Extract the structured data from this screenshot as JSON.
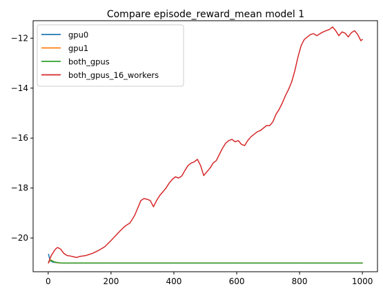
{
  "chart_data": {
    "type": "line",
    "title": "Compare episode_reward_mean model 1",
    "xlabel": "",
    "ylabel": "",
    "xlim": [
      -48,
      1048
    ],
    "ylim": [
      -21.35,
      -11.3
    ],
    "x_ticks": [
      0,
      200,
      400,
      600,
      800,
      1000
    ],
    "x_tick_labels": [
      "0",
      "200",
      "400",
      "600",
      "800",
      "1000"
    ],
    "y_ticks": [
      -20,
      -18,
      -16,
      -14,
      -12
    ],
    "y_tick_labels": [
      "−20",
      "−18",
      "−16",
      "−14",
      "−12"
    ],
    "grid": false,
    "legend_position": "upper-left",
    "series": [
      {
        "name": "gpu0",
        "color": "#1f77b4",
        "x": [
          1,
          3,
          5,
          7,
          9,
          12,
          16,
          22,
          30,
          40,
          60,
          100,
          200,
          400,
          600,
          800,
          1000
        ],
        "y": [
          -20.65,
          -20.75,
          -20.85,
          -20.9,
          -20.92,
          -20.95,
          -20.97,
          -20.98,
          -20.99,
          -21.0,
          -21.0,
          -21.0,
          -21.0,
          -21.0,
          -21.0,
          -21.0,
          -21.0
        ]
      },
      {
        "name": "gpu1",
        "color": "#ff7f0e",
        "x": [
          1,
          4,
          8,
          12,
          18,
          25,
          35,
          60,
          100,
          200,
          400,
          600,
          800,
          1000
        ],
        "y": [
          -21.0,
          -20.9,
          -20.88,
          -20.9,
          -20.95,
          -20.98,
          -21.0,
          -21.0,
          -21.0,
          -21.0,
          -21.0,
          -21.0,
          -21.0,
          -21.0
        ]
      },
      {
        "name": "both_gpus",
        "color": "#2ca02c",
        "x": [
          1,
          5,
          10,
          15,
          20,
          30,
          40,
          60,
          100,
          200,
          300,
          400,
          500,
          600,
          700,
          800,
          900,
          1000
        ],
        "y": [
          -20.95,
          -20.92,
          -20.9,
          -20.93,
          -20.96,
          -20.98,
          -21.0,
          -21.0,
          -21.0,
          -21.0,
          -21.0,
          -21.0,
          -21.0,
          -21.0,
          -21.0,
          -21.0,
          -21.0,
          -21.0
        ]
      },
      {
        "name": "both_gpus_16_workers",
        "color": "#d62728",
        "x": [
          1,
          5,
          10,
          15,
          20,
          25,
          30,
          40,
          50,
          60,
          70,
          80,
          90,
          100,
          120,
          140,
          160,
          180,
          200,
          215,
          230,
          245,
          260,
          275,
          285,
          295,
          305,
          315,
          325,
          335,
          345,
          355,
          365,
          375,
          385,
          395,
          405,
          415,
          425,
          435,
          445,
          455,
          465,
          475,
          485,
          495,
          505,
          515,
          525,
          535,
          545,
          555,
          565,
          575,
          585,
          595,
          605,
          615,
          625,
          635,
          645,
          655,
          665,
          675,
          685,
          695,
          705,
          715,
          725,
          735,
          745,
          755,
          765,
          775,
          785,
          795,
          805,
          815,
          825,
          835,
          845,
          855,
          865,
          875,
          885,
          895,
          905,
          915,
          925,
          935,
          945,
          955,
          965,
          975,
          985,
          995,
          1000
        ],
        "y": [
          -21.0,
          -20.85,
          -20.7,
          -20.6,
          -20.5,
          -20.42,
          -20.38,
          -20.45,
          -20.62,
          -20.7,
          -20.72,
          -20.75,
          -20.78,
          -20.74,
          -20.7,
          -20.62,
          -20.5,
          -20.35,
          -20.1,
          -19.9,
          -19.7,
          -19.52,
          -19.4,
          -19.1,
          -18.8,
          -18.5,
          -18.42,
          -18.45,
          -18.5,
          -18.75,
          -18.5,
          -18.3,
          -18.15,
          -18.0,
          -17.8,
          -17.65,
          -17.55,
          -17.6,
          -17.52,
          -17.3,
          -17.1,
          -17.0,
          -16.95,
          -16.85,
          -17.1,
          -17.5,
          -17.35,
          -17.2,
          -17.0,
          -16.9,
          -16.65,
          -16.4,
          -16.2,
          -16.1,
          -16.05,
          -16.15,
          -16.1,
          -16.25,
          -16.3,
          -16.1,
          -15.95,
          -15.85,
          -15.75,
          -15.7,
          -15.6,
          -15.5,
          -15.5,
          -15.35,
          -15.05,
          -14.85,
          -14.6,
          -14.3,
          -14.05,
          -13.75,
          -13.3,
          -12.75,
          -12.3,
          -12.05,
          -11.95,
          -11.85,
          -11.82,
          -11.9,
          -11.82,
          -11.75,
          -11.7,
          -11.65,
          -11.55,
          -11.7,
          -11.9,
          -11.75,
          -11.8,
          -11.95,
          -11.78,
          -11.7,
          -11.85,
          -12.1,
          -12.05
        ]
      }
    ]
  }
}
